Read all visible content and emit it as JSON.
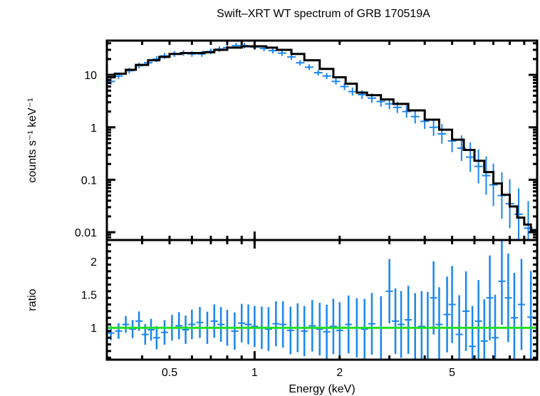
{
  "chart_data": [
    {
      "panel": "spectrum",
      "type": "scatter",
      "title": "Swift–XRT WT spectrum of GRB 170519A",
      "xlabel": "Energy (keV)",
      "ylabel": "counts s⁻¹ keV⁻¹",
      "xscale": "log",
      "yscale": "log",
      "xlim": [
        0.3,
        10
      ],
      "ylim": [
        0.0071,
        45
      ],
      "x_ticks": [
        0.5,
        1,
        2,
        5
      ],
      "x_tick_labels": [
        "0.5",
        "1",
        "2",
        "5"
      ],
      "y_ticks": [
        0.01,
        0.1,
        1,
        10
      ],
      "y_tick_labels": [
        "0.01",
        "0.1",
        "1",
        "10"
      ],
      "grid": false,
      "series": [
        {
          "name": "data",
          "style": "error-bar crosses",
          "color": "#1a86f0",
          "x": [
            0.31,
            0.33,
            0.36,
            0.39,
            0.42,
            0.45,
            0.48,
            0.52,
            0.56,
            0.6,
            0.65,
            0.7,
            0.75,
            0.8,
            0.86,
            0.92,
            1.0,
            1.08,
            1.16,
            1.25,
            1.35,
            1.45,
            1.56,
            1.68,
            1.8,
            1.94,
            2.08,
            2.22,
            2.4,
            2.6,
            2.8,
            3.0,
            3.2,
            3.45,
            3.7,
            4.0,
            4.3,
            4.6,
            5.0,
            5.4,
            5.8,
            6.2,
            6.6,
            7.0,
            7.5,
            8.0,
            8.6,
            9.3
          ],
          "y": [
            7.5,
            9.5,
            12,
            15,
            17,
            20,
            23,
            25,
            26,
            25,
            25,
            28,
            31,
            33,
            36,
            36,
            34,
            32,
            29,
            26,
            22,
            17,
            14,
            11,
            9.5,
            7.5,
            6.0,
            4.8,
            4.2,
            3.6,
            3.1,
            2.8,
            2.4,
            2.0,
            1.6,
            1.3,
            1.0,
            0.75,
            0.55,
            0.4,
            0.27,
            0.18,
            0.12,
            0.08,
            0.05,
            0.035,
            0.022,
            0.012
          ]
        },
        {
          "name": "model",
          "style": "step line",
          "color": "#000000",
          "x": [
            0.3,
            0.32,
            0.35,
            0.38,
            0.42,
            0.46,
            0.5,
            0.55,
            0.6,
            0.66,
            0.72,
            0.8,
            0.9,
            1.0,
            1.1,
            1.2,
            1.35,
            1.5,
            1.7,
            1.9,
            2.1,
            2.3,
            2.5,
            2.8,
            3.1,
            3.5,
            4.0,
            4.5,
            5.0,
            5.5,
            6.0,
            6.5,
            7.0,
            7.5,
            8.0,
            8.5,
            9.0,
            9.5,
            10.0
          ],
          "y": [
            9.0,
            10.5,
            12.5,
            15.5,
            19,
            22,
            25,
            26,
            26,
            27,
            30,
            33,
            35,
            35,
            33,
            30,
            25,
            19,
            13,
            9,
            6.8,
            4.6,
            4.1,
            3.4,
            2.8,
            2.1,
            1.4,
            0.9,
            0.58,
            0.37,
            0.23,
            0.14,
            0.085,
            0.052,
            0.031,
            0.019,
            0.014,
            0.011,
            0.011
          ]
        }
      ]
    },
    {
      "panel": "ratio",
      "type": "scatter",
      "xlabel": "Energy (keV)",
      "ylabel": "ratio",
      "xscale": "log",
      "yscale": "linear",
      "xlim": [
        0.3,
        10
      ],
      "ylim": [
        0.52,
        2.32
      ],
      "x_ticks": [
        0.5,
        1,
        2,
        5
      ],
      "x_tick_labels": [
        "0.5",
        "1",
        "2",
        "5"
      ],
      "y_ticks": [
        1,
        1.5,
        2
      ],
      "y_tick_labels": [
        "1",
        "1.5",
        "2"
      ],
      "grid": false,
      "series": [
        {
          "name": "ratio",
          "style": "error-bar crosses",
          "color": "#1a86f0",
          "x": [
            0.31,
            0.33,
            0.35,
            0.37,
            0.39,
            0.41,
            0.43,
            0.45,
            0.48,
            0.51,
            0.54,
            0.57,
            0.6,
            0.64,
            0.68,
            0.72,
            0.76,
            0.8,
            0.85,
            0.9,
            0.95,
            1.0,
            1.06,
            1.12,
            1.19,
            1.26,
            1.34,
            1.42,
            1.5,
            1.6,
            1.7,
            1.8,
            1.9,
            2.0,
            2.15,
            2.3,
            2.45,
            2.6,
            2.8,
            3.0,
            3.15,
            3.3,
            3.5,
            3.7,
            3.9,
            4.1,
            4.3,
            4.5,
            4.8,
            5.0,
            5.3,
            5.6,
            5.9,
            6.2,
            6.5,
            6.8,
            7.1,
            7.5,
            7.9,
            8.3,
            8.8,
            9.5
          ],
          "y": [
            0.92,
            0.95,
            1.05,
            0.98,
            1.1,
            0.9,
            0.97,
            0.85,
            0.93,
            1.0,
            1.03,
            0.97,
            1.05,
            1.08,
            1.0,
            1.1,
            1.05,
            1.0,
            0.95,
            1.07,
            1.05,
            1.02,
            1.0,
            0.98,
            1.06,
            1.05,
            0.96,
            1.0,
            0.95,
            1.03,
            0.98,
            0.94,
            1.02,
            0.96,
            1.05,
            1.0,
            0.98,
            1.06,
            1.0,
            1.55,
            1.1,
            1.05,
            1.12,
            1.0,
            1.02,
            1.0,
            1.45,
            1.05,
            1.2,
            1.35,
            0.9,
            1.25,
            0.72,
            1.1,
            0.8,
            1.45,
            0.85,
            1.7,
            1.45,
            1.15,
            1.35,
            1.16
          ]
        },
        {
          "name": "unity",
          "style": "line",
          "color": "#22dd22",
          "x": [
            0.3,
            10
          ],
          "y": [
            1,
            1
          ]
        }
      ]
    }
  ]
}
